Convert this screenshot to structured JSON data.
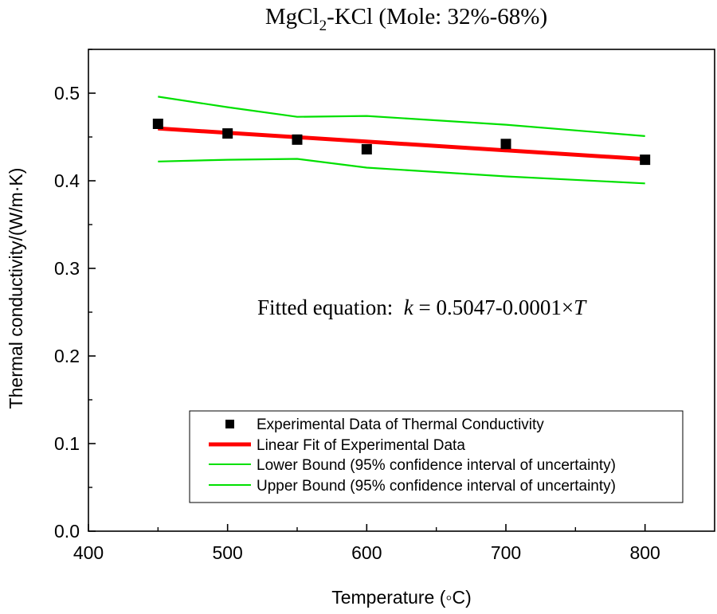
{
  "chart_data": {
    "type": "scatter",
    "title_main": "MgCl",
    "title_sub": "2",
    "title_rest": "-KCl (Mole: 32%-68%)",
    "xlabel": "Temperature (◦C)",
    "ylabel": "Thermal conductivity/(W/m·K)",
    "xlim": [
      400,
      850
    ],
    "ylim": [
      0.0,
      0.55
    ],
    "x_ticks": [
      400,
      500,
      600,
      700,
      800
    ],
    "x_tick_labels": [
      "400",
      "500",
      "600",
      "700",
      "800"
    ],
    "y_ticks": [
      0.0,
      0.1,
      0.2,
      0.3,
      0.4,
      0.5
    ],
    "y_tick_labels": [
      "0.0",
      "0.1",
      "0.2",
      "0.3",
      "0.4",
      "0.5"
    ],
    "grid": false,
    "legend_position": "bottom-right",
    "annotation": {
      "prefix": "Fitted equation:  ",
      "k_symbol": "k",
      "middle": " = 0.5047-0.0001×",
      "t_symbol": "T"
    },
    "series": [
      {
        "name": "Experimental Data of Thermal Conductivity",
        "kind": "scatter",
        "color": "#000000",
        "x": [
          450,
          500,
          550,
          600,
          700,
          800
        ],
        "y": [
          0.465,
          0.454,
          0.447,
          0.436,
          0.442,
          0.424
        ]
      },
      {
        "name": "Linear Fit of Experimental Data",
        "kind": "line",
        "color": "#ff0000",
        "x": [
          450,
          800
        ],
        "y": [
          0.4597,
          0.4247
        ]
      },
      {
        "name": "Lower Bound (95% confidence interval of uncertainty)",
        "kind": "line",
        "color": "#00e000",
        "x": [
          450,
          500,
          550,
          600,
          700,
          800
        ],
        "y": [
          0.422,
          0.424,
          0.425,
          0.415,
          0.405,
          0.397
        ]
      },
      {
        "name": "Upper Bound (95% confidence interval of uncertainty)",
        "kind": "line",
        "color": "#00e000",
        "x": [
          450,
          500,
          550,
          600,
          700,
          800
        ],
        "y": [
          0.496,
          0.484,
          0.473,
          0.474,
          0.464,
          0.451
        ]
      }
    ]
  }
}
